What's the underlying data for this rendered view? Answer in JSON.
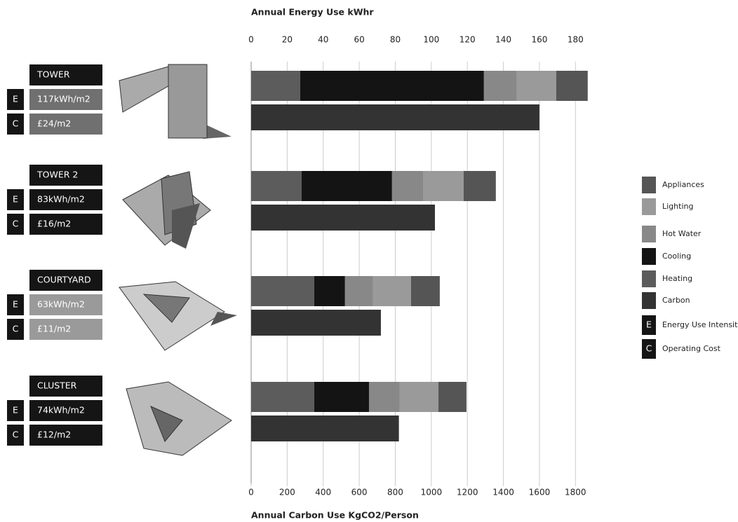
{
  "chart_data": {
    "type": "bar",
    "orientation": "horizontal",
    "stacked": true,
    "xlabel": "Annual Energy Use kWhr",
    "x2label": "Annual Carbon Use KgCO2/Person",
    "categories": [
      "TOWER",
      "TOWER 2",
      "COURTYARD",
      "CLUSTER"
    ],
    "eui": [
      "117kWh/m2",
      "83kWh/m2",
      "63kWh/m2",
      "74kWh/m2"
    ],
    "cost": [
      "£24/m2",
      "£16/m2",
      "£11/m2",
      "£12/m2"
    ],
    "box_colors": [
      "#707070",
      "#151515",
      "#9a9a9a",
      "#151515"
    ],
    "series": [
      {
        "name": "Appliances",
        "color": "#555555",
        "values": [
          17.5,
          17.9,
          16,
          15.6
        ]
      },
      {
        "name": "Lighting",
        "color": "#9a9a9a",
        "values": [
          21.8,
          22.2,
          21,
          21.4
        ]
      },
      {
        "name": "Hot Water",
        "color": "#888888",
        "values": [
          18.3,
          17.5,
          15.6,
          17.1
        ]
      },
      {
        "name": "Cooling",
        "color": "#141414",
        "values": [
          102,
          50.2,
          17.1,
          30.4
        ]
      },
      {
        "name": "Heating",
        "color": "#5c5c5c",
        "values": [
          27.2,
          28,
          35,
          35
        ]
      },
      {
        "name": "Carbon",
        "color": "#333333",
        "axis": "x2",
        "values": [
          1600,
          1020,
          720,
          820
        ]
      }
    ],
    "legend_symbols": [
      {
        "symbol": "E",
        "label": "Energy Use Intensity"
      },
      {
        "symbol": "C",
        "label": "Operating Cost"
      }
    ],
    "xlim": [
      0,
      190
    ],
    "xticks": [
      0,
      20,
      40,
      60,
      80,
      100,
      120,
      140,
      160,
      180
    ],
    "x2lim": [
      0,
      1900
    ],
    "x2ticks": [
      0,
      200,
      400,
      600,
      800,
      1000,
      1200,
      1400,
      1600,
      1800
    ],
    "grid": true,
    "legend": "right"
  }
}
